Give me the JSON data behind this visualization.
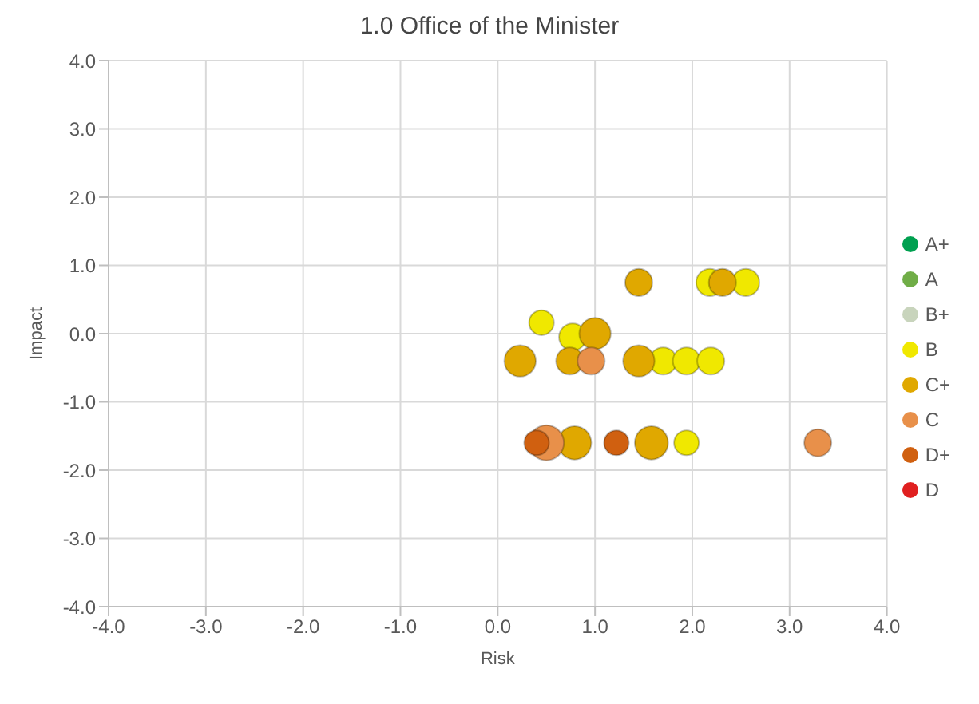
{
  "chart_data": {
    "type": "bubble",
    "title": "1.0 Office of the Minister",
    "xlabel": "Risk",
    "ylabel": "Impact",
    "xlim": [
      -4,
      4
    ],
    "xticks": [
      {
        "value": -4,
        "label": "-4.0"
      },
      {
        "value": -3,
        "label": "-3.0"
      },
      {
        "value": -2,
        "label": "-2.0"
      },
      {
        "value": -1,
        "label": "-1.0"
      },
      {
        "value": 0,
        "label": "0.0"
      },
      {
        "value": 1,
        "label": "1.0"
      },
      {
        "value": 2,
        "label": "2.0"
      },
      {
        "value": 3,
        "label": "3.0"
      },
      {
        "value": 4,
        "label": "4.0"
      }
    ],
    "ylim": [
      -4,
      4
    ],
    "yticks": [
      {
        "value": -4,
        "label": "-4.0"
      },
      {
        "value": -3,
        "label": "-3.0"
      },
      {
        "value": -2,
        "label": "-2.0"
      },
      {
        "value": -1,
        "label": "-1.0"
      },
      {
        "value": 0,
        "label": "0.0"
      },
      {
        "value": 1,
        "label": "1.0"
      },
      {
        "value": 2,
        "label": "2.0"
      },
      {
        "value": 3,
        "label": "3.0"
      },
      {
        "value": 4,
        "label": "4.0"
      }
    ],
    "grid": true,
    "legend": "right",
    "series": [
      {
        "name": "A+",
        "color": "#00a050"
      },
      {
        "name": "A",
        "color": "#70ad47"
      },
      {
        "name": "B+",
        "color": "#c8d4bc"
      },
      {
        "name": "B",
        "color": "#f0e800",
        "x": [
          2.18,
          2.55,
          0.45,
          0.77,
          1.7,
          1.94,
          2.19,
          1.94
        ],
        "values": [
          0.75,
          0.75,
          0.16,
          -0.05,
          -0.4,
          -0.4,
          -0.4,
          -1.6
        ],
        "sizes": [
          0.6,
          0.6,
          0.5,
          0.6,
          0.6,
          0.6,
          0.6,
          0.5
        ]
      },
      {
        "name": "C+",
        "color": "#e0a800",
        "x": [
          1.45,
          2.31,
          1.0,
          0.23,
          0.74,
          1.45,
          0.79,
          1.58
        ],
        "values": [
          0.75,
          0.75,
          0.0,
          -0.4,
          -0.4,
          -0.4,
          -1.6,
          -1.6
        ],
        "sizes": [
          0.6,
          0.6,
          0.8,
          0.8,
          0.6,
          0.8,
          0.9,
          0.9
        ]
      },
      {
        "name": "C",
        "color": "#e8904a",
        "x": [
          0.96,
          0.5,
          3.29
        ],
        "values": [
          -0.4,
          -1.6,
          -1.6
        ],
        "sizes": [
          0.6,
          1.0,
          0.6
        ]
      },
      {
        "name": "D+",
        "color": "#d06010",
        "x": [
          0.4,
          1.22
        ],
        "values": [
          -1.6,
          -1.6
        ],
        "sizes": [
          0.5,
          0.5
        ]
      },
      {
        "name": "D",
        "color": "#e02020"
      }
    ]
  }
}
